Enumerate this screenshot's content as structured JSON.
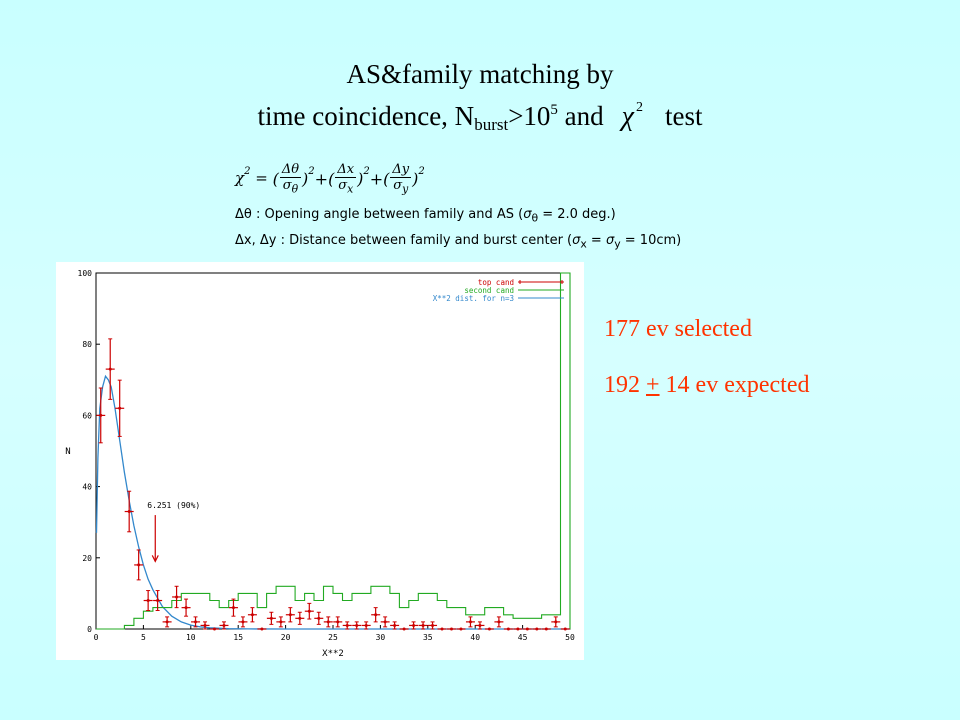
{
  "title": {
    "line1": "AS&family matching by",
    "line2_prefix": "time coincidence,  N",
    "line2_sub": "burst",
    "line2_mid": ">10",
    "line2_sup": "5",
    "line2_and": " and",
    "chi": "χ",
    "chi_sup": "2",
    "line2_end": "test"
  },
  "formula": {
    "lhs": "χ",
    "lhs_sup": "2",
    "eq": " = ",
    "terms": [
      {
        "num": "Δθ",
        "den": "σ",
        "den_sub": "θ"
      },
      {
        "num": "Δx",
        "den": "σ",
        "den_sub": "x"
      },
      {
        "num": "Δy",
        "den": "σ",
        "den_sub": "y"
      }
    ],
    "def_theta_sym": "Δθ",
    "def_theta_text": " : Opening angle between family  and AS (",
    "def_theta_sigma": "σ",
    "def_theta_sub": "θ",
    "def_theta_val": " = 2.0 deg.)",
    "def_xy_sym": "Δx, Δy",
    "def_xy_text": " : Distance between family  and burst center (",
    "def_xy_sigma1": "σ",
    "def_xy_sub1": "x",
    "def_xy_eq": " = ",
    "def_xy_sigma2": "σ",
    "def_xy_sub2": "y",
    "def_xy_val": " = 10cm)"
  },
  "stats": {
    "selected": "177 ev selected",
    "expected_a": "192 ",
    "expected_pm": "+",
    "expected_b": " 14 ev expected"
  },
  "colors": {
    "top_cand": "#cc0000",
    "second_cand": "#22aa22",
    "chi2_curve": "#3388cc",
    "stat_text": "#ff3300"
  },
  "chart_data": {
    "type": "line",
    "xlabel": "X**2",
    "ylabel": "N",
    "xlim": [
      0,
      50
    ],
    "ylim": [
      0,
      100
    ],
    "x_ticks": [
      0,
      5,
      10,
      15,
      20,
      25,
      30,
      35,
      40,
      45,
      50
    ],
    "y_ticks": [
      0,
      20,
      40,
      60,
      80,
      100
    ],
    "legend_position": "top-right",
    "annotation": {
      "text": "6.251 (90%)",
      "x": 6.251
    },
    "series": [
      {
        "name": "top cand",
        "style": "points-with-errors",
        "x": [
          0.5,
          1.5,
          2.5,
          3.5,
          4.5,
          5.5,
          6.5,
          7.5,
          8.5,
          9.5,
          10.5,
          11.5,
          12.5,
          13.5,
          14.5,
          15.5,
          16.5,
          17.5,
          18.5,
          19.5,
          20.5,
          21.5,
          22.5,
          23.5,
          24.5,
          25.5,
          26.5,
          27.5,
          28.5,
          29.5,
          30.5,
          31.5,
          32.5,
          33.5,
          34.5,
          35.5,
          36.5,
          37.5,
          38.5,
          39.5,
          40.5,
          41.5,
          42.5,
          43.5,
          44.5,
          45.5,
          46.5,
          47.5,
          48.5,
          49.5
        ],
        "y": [
          60,
          73,
          62,
          33,
          18,
          8,
          8,
          2,
          9,
          6,
          2,
          1,
          0,
          1,
          6,
          2,
          4,
          0,
          3,
          2,
          4,
          3,
          5,
          3,
          2,
          2,
          1,
          1,
          1,
          4,
          2,
          1,
          0,
          1,
          1,
          1,
          0,
          0,
          0,
          2,
          1,
          0,
          2,
          0,
          0,
          0,
          0,
          0,
          2,
          0
        ],
        "err": [
          7.7,
          8.5,
          7.9,
          5.7,
          4.2,
          2.8,
          2.8,
          1.4,
          3,
          2.4,
          1.4,
          1,
          0,
          1,
          2.4,
          1.4,
          2,
          0,
          1.7,
          1.4,
          2,
          1.7,
          2.2,
          1.7,
          1.4,
          1.4,
          1,
          1,
          1,
          2,
          1.4,
          1,
          0,
          1,
          1,
          1,
          0,
          0,
          0,
          1.4,
          1,
          0,
          1.4,
          0,
          0,
          0,
          0,
          0,
          1.4,
          0
        ]
      },
      {
        "name": "second cand",
        "style": "steps",
        "x": [
          0,
          1,
          2,
          3,
          4,
          5,
          6,
          7,
          8,
          9,
          10,
          11,
          12,
          13,
          14,
          15,
          16,
          17,
          18,
          19,
          20,
          21,
          22,
          23,
          24,
          25,
          26,
          27,
          28,
          29,
          30,
          31,
          32,
          33,
          34,
          35,
          36,
          37,
          38,
          39,
          40,
          41,
          42,
          43,
          44,
          45,
          46,
          47,
          48,
          49
        ],
        "y": [
          0,
          0,
          0,
          1,
          3,
          5,
          6,
          6,
          8,
          10,
          10,
          10,
          8,
          6,
          8,
          10,
          10,
          6,
          10,
          12,
          12,
          8,
          10,
          8,
          12,
          10,
          8,
          10,
          10,
          12,
          12,
          10,
          6,
          8,
          10,
          10,
          8,
          6,
          6,
          4,
          4,
          6,
          6,
          4,
          3,
          3,
          3,
          4,
          4,
          100
        ]
      },
      {
        "name": "X**2 dist. for n=3",
        "style": "line",
        "x": [
          0.05,
          0.2,
          0.4,
          0.7,
          1.0,
          1.3,
          1.6,
          2.0,
          2.5,
          3.0,
          3.5,
          4.0,
          4.5,
          5.0,
          5.5,
          6.0,
          7.0,
          8.0,
          9.0,
          10.0,
          11.0,
          12.0,
          14.0,
          16.0,
          20.0,
          25.0,
          30.0,
          50.0
        ],
        "y": [
          27,
          48,
          62,
          68,
          71,
          70,
          68,
          62,
          53,
          44,
          36,
          29,
          23,
          18,
          14,
          11,
          6.3,
          3.6,
          2.0,
          1.1,
          0.6,
          0.33,
          0.1,
          0.03,
          0,
          0,
          0,
          0
        ]
      }
    ]
  }
}
